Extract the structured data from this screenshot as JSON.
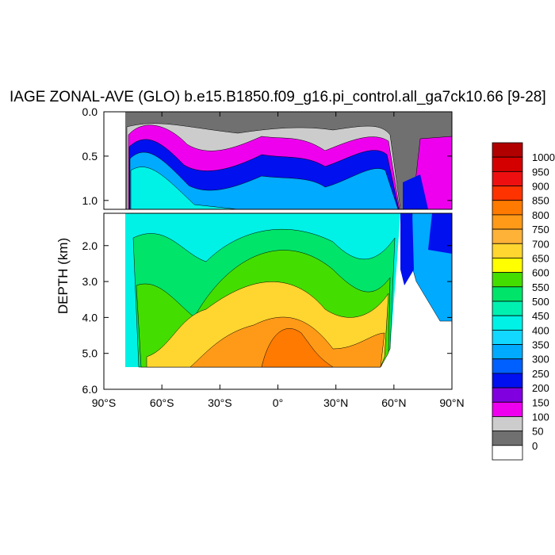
{
  "chart_data": {
    "type": "heatmap",
    "title": "IAGE ZONAL-AVE (GLO) b.e15.B1850.f09_g16.pi_control.all_ga7ck10.66 [9-28]",
    "xlabel": "",
    "ylabel": "DEPTH (km)",
    "x_ticks": [
      "90°S",
      "60°S",
      "30°S",
      "0°",
      "30°N",
      "60°N",
      "90°N"
    ],
    "x_tick_values": [
      -90,
      -60,
      -30,
      0,
      30,
      60,
      90
    ],
    "upper_panel": {
      "ylim": [
        0.0,
        1.1
      ],
      "y_ticks": [
        "0.0",
        "0.5",
        "1.0"
      ],
      "y_tick_values": [
        0.0,
        0.5,
        1.0
      ]
    },
    "lower_panel": {
      "ylim": [
        1.1,
        6.0
      ],
      "y_ticks": [
        "2.0",
        "3.0",
        "4.0",
        "5.0",
        "6.0"
      ],
      "y_tick_values": [
        2.0,
        3.0,
        4.0,
        5.0,
        6.0
      ]
    },
    "xlim": [
      -90,
      90
    ],
    "colorbar": {
      "levels": [
        "1000",
        "950",
        "900",
        "850",
        "800",
        "750",
        "700",
        "650",
        "600",
        "550",
        "500",
        "450",
        "400",
        "350",
        "300",
        "250",
        "200",
        "150",
        "100",
        "50",
        "0"
      ],
      "colors": [
        "#b00000",
        "#d40000",
        "#ee1010",
        "#ff3300",
        "#ff7a00",
        "#ff9a18",
        "#ffb238",
        "#ffd530",
        "#ffff00",
        "#44dd00",
        "#00e46a",
        "#00f0b0",
        "#00f2e6",
        "#12d8ff",
        "#00aaff",
        "#0060ff",
        "#0010ee",
        "#8000e0",
        "#ee00ee",
        "#cccccc",
        "#707070",
        "#ffffff"
      ]
    },
    "regions": [
      {
        "name": "0-50",
        "value": 25
      },
      {
        "name": "50-100",
        "value": 75
      },
      {
        "name": "100-150",
        "value": 125
      },
      {
        "name": "200-250",
        "value": 225
      },
      {
        "name": "300-350",
        "value": 325
      },
      {
        "name": "400-450",
        "value": 425
      },
      {
        "name": "500-550",
        "value": 525
      },
      {
        "name": "550-600",
        "value": 575
      },
      {
        "name": "650-700",
        "value": 675
      },
      {
        "name": "750-800",
        "value": 775
      },
      {
        "name": "800-850",
        "value": 825
      }
    ]
  }
}
